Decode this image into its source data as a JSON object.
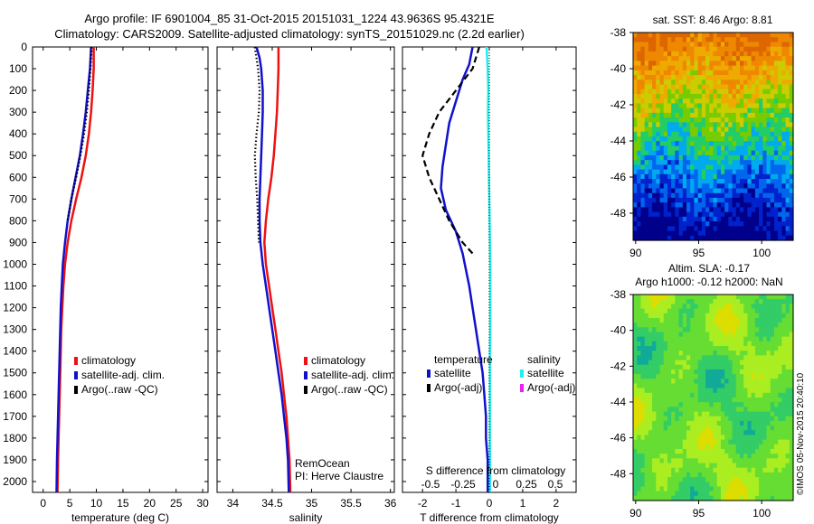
{
  "header": {
    "line1": "Argo profile: IF 6901004_85 31-Oct-2015 20151031_1224 43.9636S 95.4321E",
    "line2": "Climatology: CARS2009. Satellite-adjusted climatology: synTS_20151029.nc (2.2d earlier)"
  },
  "colors": {
    "climatology": "#ee1111",
    "satellite": "#1111cc",
    "argo": "#000000",
    "sal_satellite": "#22eeee",
    "sal_argo": "#ee22ee"
  },
  "chart_data": [
    {
      "id": "temperature",
      "type": "line",
      "xlabel": "temperature (deg C)",
      "ylim": [
        2050,
        0
      ],
      "xlim": [
        -2,
        31
      ],
      "xticks": [
        0,
        5,
        10,
        15,
        20,
        25,
        30
      ],
      "yticks": [
        0,
        100,
        200,
        300,
        400,
        500,
        600,
        700,
        800,
        900,
        1000,
        1100,
        1200,
        1300,
        1400,
        1500,
        1600,
        1700,
        1800,
        1900,
        2000
      ],
      "legend": [
        "climatology",
        "satellite-adj. clim.",
        "Argo(..raw -QC)"
      ],
      "series": [
        {
          "name": "climatology",
          "color": "#ee1111",
          "style": "solid",
          "points": [
            [
              9.5,
              0
            ],
            [
              9.5,
              100
            ],
            [
              9.3,
              200
            ],
            [
              9.0,
              300
            ],
            [
              8.6,
              400
            ],
            [
              8.0,
              500
            ],
            [
              7.2,
              600
            ],
            [
              6.2,
              700
            ],
            [
              5.3,
              800
            ],
            [
              4.6,
              900
            ],
            [
              4.1,
              1000
            ],
            [
              3.8,
              1100
            ],
            [
              3.6,
              1200
            ],
            [
              3.4,
              1300
            ],
            [
              3.3,
              1400
            ],
            [
              3.2,
              1500
            ],
            [
              3.1,
              1600
            ],
            [
              3.0,
              1700
            ],
            [
              2.9,
              1800
            ],
            [
              2.8,
              1900
            ],
            [
              2.7,
              2050
            ]
          ]
        },
        {
          "name": "satellite-adj. clim.",
          "color": "#1111cc",
          "style": "solid",
          "points": [
            [
              9.0,
              0
            ],
            [
              8.8,
              100
            ],
            [
              8.4,
              200
            ],
            [
              8.0,
              300
            ],
            [
              7.5,
              400
            ],
            [
              6.9,
              500
            ],
            [
              6.1,
              600
            ],
            [
              5.3,
              700
            ],
            [
              4.6,
              800
            ],
            [
              4.1,
              900
            ],
            [
              3.7,
              1000
            ],
            [
              3.5,
              1100
            ],
            [
              3.3,
              1200
            ],
            [
              3.2,
              1300
            ],
            [
              3.1,
              1400
            ],
            [
              3.0,
              1500
            ],
            [
              2.9,
              1600
            ],
            [
              2.8,
              1700
            ],
            [
              2.7,
              1800
            ],
            [
              2.6,
              1900
            ],
            [
              2.5,
              2050
            ]
          ]
        },
        {
          "name": "Argo(..raw -QC)",
          "color": "#000000",
          "style": "dotted",
          "points": [
            [
              9.1,
              0
            ],
            [
              8.9,
              100
            ],
            [
              8.6,
              200
            ],
            [
              8.2,
              300
            ],
            [
              7.7,
              400
            ],
            [
              7.0,
              500
            ],
            [
              6.2,
              600
            ],
            [
              5.3,
              700
            ],
            [
              4.6,
              800
            ]
          ]
        }
      ]
    },
    {
      "id": "salinity",
      "type": "line",
      "xlabel": "salinity",
      "ylim": [
        2050,
        0
      ],
      "xlim": [
        33.8,
        36.05
      ],
      "xticks": [
        34,
        34.5,
        35,
        35.5,
        36
      ],
      "legend": [
        "climatology",
        "satellite-adj. clim.",
        "Argo(..raw -QC)"
      ],
      "annotations": [
        "RemOcean",
        "PI: Herve Claustre"
      ],
      "series": [
        {
          "name": "climatology",
          "color": "#ee1111",
          "style": "solid",
          "points": [
            [
              34.58,
              0
            ],
            [
              34.58,
              100
            ],
            [
              34.57,
              200
            ],
            [
              34.56,
              300
            ],
            [
              34.54,
              400
            ],
            [
              34.52,
              500
            ],
            [
              34.49,
              600
            ],
            [
              34.45,
              700
            ],
            [
              34.42,
              800
            ],
            [
              34.4,
              900
            ],
            [
              34.42,
              1000
            ],
            [
              34.46,
              1100
            ],
            [
              34.5,
              1200
            ],
            [
              34.54,
              1300
            ],
            [
              34.58,
              1400
            ],
            [
              34.62,
              1500
            ],
            [
              34.65,
              1600
            ],
            [
              34.68,
              1700
            ],
            [
              34.7,
              1800
            ],
            [
              34.72,
              1900
            ],
            [
              34.73,
              2050
            ]
          ]
        },
        {
          "name": "satellite-adj. clim.",
          "color": "#1111cc",
          "style": "solid",
          "points": [
            [
              34.3,
              0
            ],
            [
              34.34,
              50
            ],
            [
              34.36,
              100
            ],
            [
              34.38,
              200
            ],
            [
              34.38,
              300
            ],
            [
              34.37,
              400
            ],
            [
              34.36,
              500
            ],
            [
              34.35,
              600
            ],
            [
              34.34,
              700
            ],
            [
              34.34,
              800
            ],
            [
              34.35,
              900
            ],
            [
              34.38,
              1000
            ],
            [
              34.42,
              1100
            ],
            [
              34.46,
              1200
            ],
            [
              34.5,
              1300
            ],
            [
              34.54,
              1400
            ],
            [
              34.58,
              1500
            ],
            [
              34.62,
              1600
            ],
            [
              34.65,
              1700
            ],
            [
              34.68,
              1800
            ],
            [
              34.7,
              1900
            ],
            [
              34.71,
              2050
            ]
          ]
        },
        {
          "name": "Argo(..raw -QC)",
          "color": "#000000",
          "style": "dotted",
          "points": [
            [
              34.28,
              0
            ],
            [
              34.32,
              100
            ],
            [
              34.34,
              200
            ],
            [
              34.33,
              300
            ],
            [
              34.3,
              400
            ],
            [
              34.28,
              500
            ],
            [
              34.29,
              600
            ],
            [
              34.31,
              700
            ],
            [
              34.32,
              800
            ],
            [
              34.33,
              900
            ]
          ]
        }
      ]
    },
    {
      "id": "difference",
      "type": "line",
      "xlabel": "T difference from climatology",
      "xlabel_top": "S difference from climatology",
      "ylim": [
        2050,
        0
      ],
      "xlim": [
        -2.6,
        2.6
      ],
      "xticks": [
        -2,
        -1,
        0,
        1,
        2
      ],
      "xtick_labels": [
        "-2",
        "-1",
        "0",
        "1",
        "2"
      ],
      "stick_labels": [
        "-0.5",
        "-0.25",
        "0",
        "0.25",
        "0.5"
      ],
      "legend_temperature_title": "temperature",
      "legend_salinity_title": "salinity",
      "legend_temperature": [
        "satellite",
        "Argo(-adj)"
      ],
      "legend_salinity": [
        "satellite",
        "Argo(-adj)"
      ],
      "series": [
        {
          "name": "temperature satellite",
          "color": "#1111cc",
          "style": "solid",
          "points": [
            [
              -0.5,
              0
            ],
            [
              -0.6,
              80
            ],
            [
              -0.8,
              150
            ],
            [
              -1.0,
              250
            ],
            [
              -1.2,
              350
            ],
            [
              -1.3,
              450
            ],
            [
              -1.4,
              550
            ],
            [
              -1.45,
              650
            ],
            [
              -1.3,
              750
            ],
            [
              -1.0,
              850
            ],
            [
              -0.8,
              950
            ],
            [
              -0.6,
              1100
            ],
            [
              -0.5,
              1200
            ],
            [
              -0.4,
              1300
            ],
            [
              -0.3,
              1400
            ],
            [
              -0.2,
              1500
            ],
            [
              -0.15,
              1600
            ],
            [
              -0.1,
              1700
            ],
            [
              -0.1,
              1800
            ],
            [
              -0.05,
              1900
            ],
            [
              -0.05,
              2050
            ]
          ]
        },
        {
          "name": "temperature Argo(-adj)",
          "color": "#000000",
          "style": "dashed",
          "points": [
            [
              -0.3,
              0
            ],
            [
              -0.5,
              100
            ],
            [
              -1.0,
              200
            ],
            [
              -1.5,
              300
            ],
            [
              -1.8,
              400
            ],
            [
              -2.0,
              500
            ],
            [
              -1.8,
              600
            ],
            [
              -1.5,
              700
            ],
            [
              -1.2,
              800
            ],
            [
              -0.8,
              900
            ],
            [
              -0.5,
              950
            ]
          ]
        },
        {
          "name": "salinity satellite",
          "color": "#22eeee",
          "style": "solid",
          "points": [
            [
              -0.08,
              0
            ],
            [
              -0.05,
              100
            ],
            [
              -0.03,
              200
            ],
            [
              -0.04,
              300
            ],
            [
              -0.03,
              400
            ],
            [
              -0.02,
              500
            ],
            [
              -0.01,
              600
            ],
            [
              0.0,
              700
            ],
            [
              0.01,
              800
            ],
            [
              0.02,
              900
            ],
            [
              0.03,
              1000
            ],
            [
              0.03,
              1100
            ],
            [
              0.03,
              1200
            ],
            [
              0.03,
              1300
            ],
            [
              0.02,
              1400
            ],
            [
              0.02,
              1500
            ],
            [
              0.02,
              1600
            ],
            [
              0.02,
              1700
            ],
            [
              0.02,
              1800
            ],
            [
              0.02,
              1900
            ],
            [
              0.02,
              2050
            ]
          ]
        }
      ]
    },
    {
      "id": "sst_map",
      "type": "heatmap",
      "title": "sat. SST: 8.46  Argo: 8.81",
      "xlim": [
        89.8,
        102.5
      ],
      "ylim": [
        -49.5,
        -38
      ],
      "xticks": [
        90,
        95,
        100
      ],
      "yticks": [
        -38,
        -40,
        -42,
        -44,
        -46,
        -48
      ],
      "palette": [
        "#00008a",
        "#0022cc",
        "#0066ee",
        "#00aaee",
        "#22cc66",
        "#77cc00",
        "#cccc00",
        "#eeaa00",
        "#ee8800",
        "#dd6600"
      ]
    },
    {
      "id": "sla_map",
      "type": "heatmap",
      "title": "Altim. SLA: -0.17",
      "subtitle": "Argo h1000: -0.12  h2000: NaN",
      "xlim": [
        89.8,
        102.5
      ],
      "ylim": [
        -49.5,
        -38
      ],
      "xticks": [
        90,
        95,
        100
      ],
      "yticks": [
        -38,
        -40,
        -42,
        -44,
        -46,
        -48
      ],
      "palette": [
        "#11aa99",
        "#33cc66",
        "#66dd33",
        "#aaee22",
        "#dddd00",
        "#eeaa00"
      ]
    }
  ],
  "footer": {
    "credit": "©IMOS 05-Nov-2015 20:40:10"
  }
}
